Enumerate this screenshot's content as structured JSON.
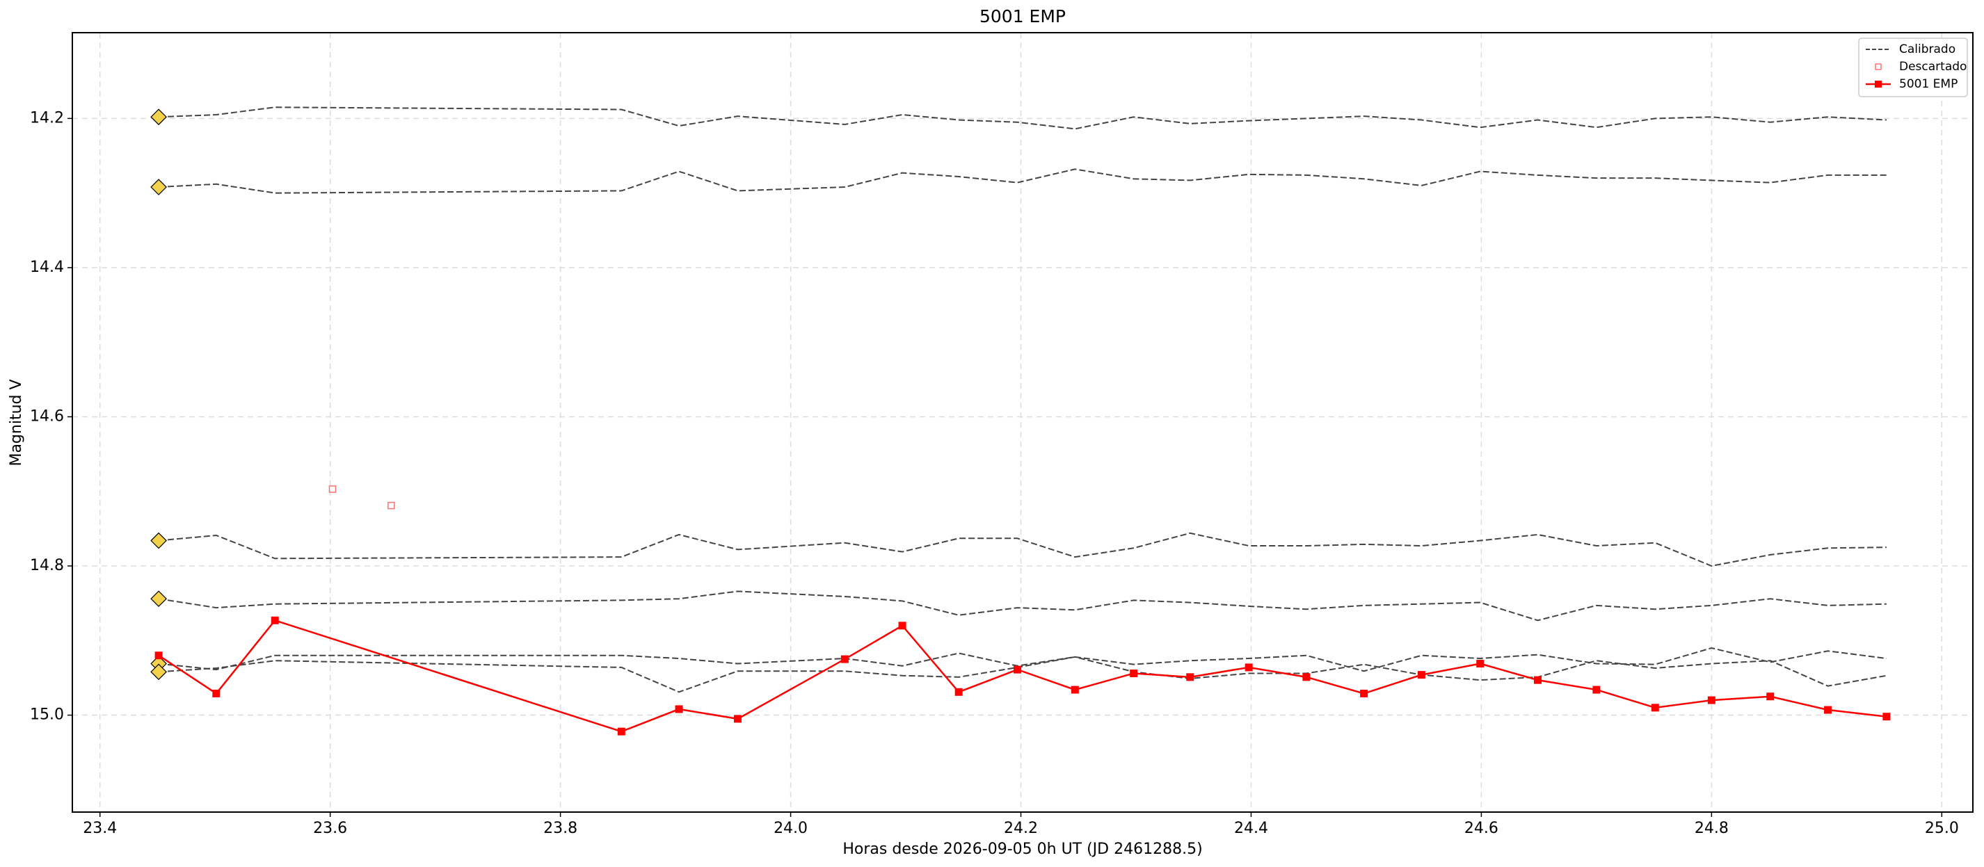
{
  "chart_data": {
    "type": "line",
    "title": "5001 EMP",
    "xlabel": "Horas desde 2026-09-05 0h UT (JD 2461288.5)",
    "ylabel": "Magnitud V",
    "xlim": [
      23.376,
      25.027
    ],
    "ylim": [
      14.085,
      15.13
    ],
    "y_inverted": true,
    "xticks": [
      23.4,
      23.6,
      23.8,
      {
        "value": 24,
        "label": "24.0"
      },
      24.2,
      24.4,
      24.6,
      24.8,
      {
        "value": 25,
        "label": "25.0"
      }
    ],
    "yticks": [
      14.2,
      14.4,
      14.6,
      14.8,
      {
        "value": 15,
        "label": "15.0"
      }
    ],
    "grid": true,
    "legend": "upper right",
    "first_point_marker_color": "#f2d14b",
    "x": [
      23.451,
      23.501,
      23.552,
      23.853,
      23.903,
      23.954,
      24.047,
      24.097,
      24.146,
      24.197,
      24.247,
      24.298,
      24.347,
      24.398,
      24.448,
      24.498,
      24.548,
      24.599,
      24.649,
      24.7,
      24.751,
      24.8,
      24.851,
      24.901,
      24.952
    ],
    "series": [
      {
        "name": "Calibrado",
        "color": "#444444",
        "dashed": true,
        "values": [
          [
            14.198,
            14.195,
            14.185,
            14.188,
            14.21,
            14.197,
            14.208,
            14.195,
            14.202,
            14.205,
            14.214,
            14.198,
            14.207,
            14.203,
            14.2,
            14.197,
            14.202,
            14.212,
            14.202,
            14.212,
            14.2,
            14.198,
            14.205,
            14.198,
            14.202
          ],
          [
            14.292,
            14.288,
            14.3,
            14.297,
            14.271,
            14.297,
            14.292,
            14.273,
            14.278,
            14.286,
            14.268,
            14.281,
            14.283,
            14.275,
            14.276,
            14.281,
            14.29,
            14.271,
            14.276,
            14.28,
            14.28,
            14.283,
            14.286,
            14.276,
            14.276
          ],
          [
            14.766,
            14.759,
            14.79,
            14.788,
            14.758,
            14.778,
            14.769,
            14.781,
            14.763,
            14.763,
            14.788,
            14.776,
            14.756,
            14.773,
            14.773,
            14.771,
            14.773,
            14.766,
            14.758,
            14.773,
            14.769,
            14.8,
            14.785,
            14.776,
            14.775
          ],
          [
            14.844,
            14.856,
            14.851,
            14.846,
            14.844,
            14.834,
            14.841,
            14.847,
            14.866,
            14.856,
            14.859,
            14.846,
            14.849,
            14.854,
            14.858,
            14.853,
            14.851,
            14.849,
            14.873,
            14.853,
            14.858,
            14.853,
            14.844,
            14.853,
            14.851
          ],
          [
            14.931,
            14.939,
            14.92,
            14.92,
            14.924,
            14.931,
            14.924,
            14.934,
            14.917,
            14.934,
            14.922,
            14.932,
            14.927,
            14.924,
            14.92,
            14.941,
            14.92,
            14.924,
            14.919,
            14.931,
            14.932,
            14.91,
            14.929,
            14.914,
            14.924
          ],
          [
            14.942,
            14.937,
            14.927,
            14.936,
            14.969,
            14.941,
            14.941,
            14.947,
            14.949,
            14.936,
            14.922,
            14.942,
            14.951,
            14.944,
            14.944,
            14.932,
            14.946,
            14.953,
            14.949,
            14.927,
            14.937,
            14.931,
            14.927,
            14.961,
            14.947
          ]
        ]
      },
      {
        "name": "Descartado",
        "color": "#ff7070",
        "marker": "open-square",
        "x": [
          23.602,
          23.653
        ],
        "values": [
          14.697,
          14.719
        ]
      },
      {
        "name": "5001 EMP",
        "color": "#ff0000",
        "marker": "square",
        "values": [
          14.92,
          14.971,
          14.873,
          15.022,
          14.992,
          15.005,
          14.925,
          14.88,
          14.969,
          14.939,
          14.966,
          14.944,
          14.949,
          14.936,
          14.949,
          14.971,
          14.946,
          14.931,
          14.953,
          14.966,
          14.99,
          14.98,
          14.975,
          14.993,
          15.002
        ]
      }
    ]
  }
}
